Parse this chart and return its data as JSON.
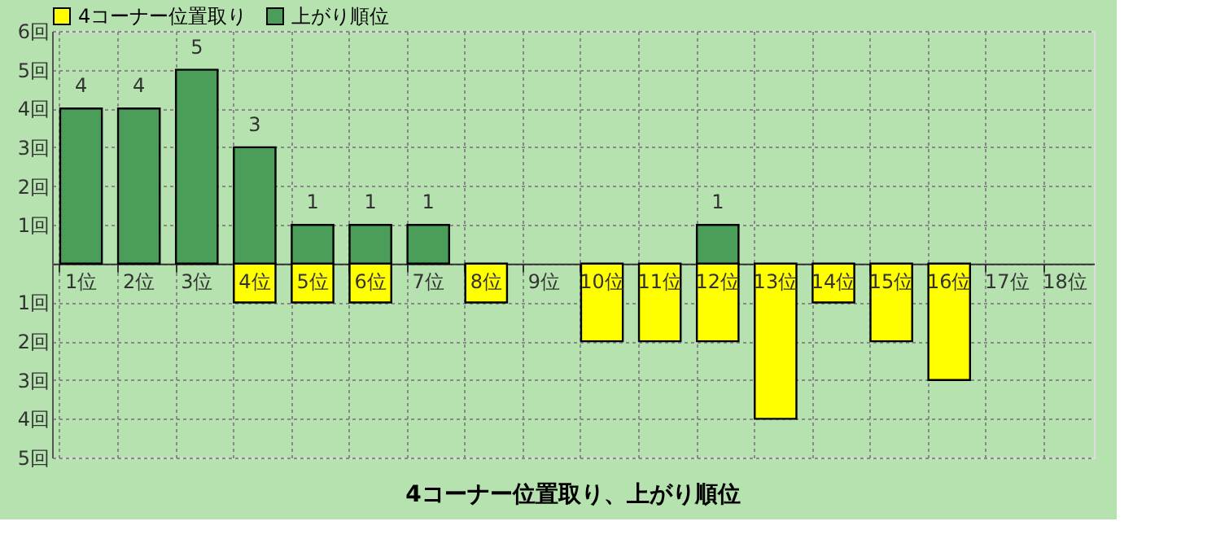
{
  "chart_data": {
    "type": "bar",
    "title": "4コーナー位置取り、上がり順位",
    "categories": [
      "1位",
      "2位",
      "3位",
      "4位",
      "5位",
      "6位",
      "7位",
      "8位",
      "9位",
      "10位",
      "11位",
      "12位",
      "13位",
      "14位",
      "15位",
      "16位",
      "17位",
      "18位"
    ],
    "series": [
      {
        "name": "4コーナー位置取り",
        "color": "#ffff00",
        "values": [
          null,
          null,
          null,
          -1,
          -1,
          -1,
          null,
          -1,
          null,
          -2,
          -2,
          -2,
          -4,
          -1,
          -2,
          -3,
          null,
          null
        ]
      },
      {
        "name": "上がり順位",
        "color": "#4a9e5a",
        "values": [
          4,
          4,
          5,
          3,
          1,
          1,
          1,
          null,
          null,
          null,
          null,
          1,
          null,
          null,
          null,
          null,
          null,
          null
        ],
        "value_labels": [
          "4",
          "4",
          "5",
          "3",
          "1",
          "1",
          "1",
          null,
          null,
          null,
          null,
          "1",
          null,
          null,
          null,
          null,
          null,
          null
        ]
      }
    ],
    "ylim": [
      -5,
      6
    ],
    "yticks": [
      {
        "value": 6,
        "label": "6回"
      },
      {
        "value": 5,
        "label": "5回"
      },
      {
        "value": 4,
        "label": "4回"
      },
      {
        "value": 3,
        "label": "3回"
      },
      {
        "value": 2,
        "label": "2回"
      },
      {
        "value": 1,
        "label": "1回"
      },
      {
        "value": 0,
        "label": null
      },
      {
        "value": -1,
        "label": "1回"
      },
      {
        "value": -2,
        "label": "2回"
      },
      {
        "value": -3,
        "label": "3回"
      },
      {
        "value": -4,
        "label": "4回"
      },
      {
        "value": -5,
        "label": "5回"
      }
    ],
    "grid": true,
    "legend": "top left"
  }
}
